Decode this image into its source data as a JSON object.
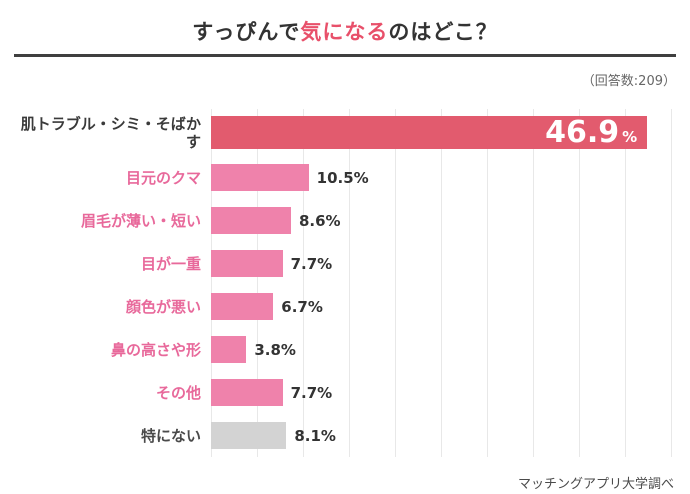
{
  "title": {
    "part1": "すっぴんで",
    "highlight": "気になる",
    "part2": "のはどこ？"
  },
  "meta": {
    "respondents": "（回答数:209）",
    "source": "マッチングアプリ大学調べ"
  },
  "colors": {
    "title_highlight": "#e8506a",
    "underline": "#3f3f3f",
    "top_bar": "#e25b6e",
    "pink_bar": "#ef82ab",
    "gray_bar": "#d3d3d3",
    "pink_label": "#e8699b",
    "dark_label": "#3a3a3a",
    "gridline": "#e8e8e8"
  },
  "chart_data": {
    "type": "bar",
    "orientation": "horizontal",
    "title": "すっぴんで気になるのはどこ？",
    "categories": [
      "肌トラブル・シミ・そばかす",
      "目元のクマ",
      "眉毛が薄い・短い",
      "目が一重",
      "顔色が悪い",
      "鼻の高さや形",
      "その他",
      "特にない"
    ],
    "values": [
      46.9,
      10.5,
      8.6,
      7.7,
      6.7,
      3.8,
      7.7,
      8.1
    ],
    "display_values": [
      "46.9",
      "10.5%",
      "8.6%",
      "7.7%",
      "6.7%",
      "3.8%",
      "7.7%",
      "8.1%"
    ],
    "unit": "%",
    "xmax": 50,
    "gridline_interval": 5,
    "grid": true,
    "legend": false,
    "bar_colors": [
      "#e25b6e",
      "#ef82ab",
      "#ef82ab",
      "#ef82ab",
      "#ef82ab",
      "#ef82ab",
      "#ef82ab",
      "#d3d3d3"
    ],
    "label_colors": [
      "#3a3a3a",
      "#e8699b",
      "#e8699b",
      "#e8699b",
      "#e8699b",
      "#e8699b",
      "#e8699b",
      "#4a4a4a"
    ]
  }
}
